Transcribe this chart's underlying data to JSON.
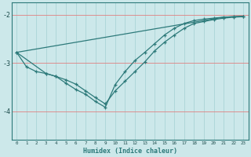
{
  "xlabel": "Humidex (Indice chaleur)",
  "bg_color": "#cce8ea",
  "line_color": "#2d7a7a",
  "vgrid_color": "#aad4d6",
  "hgrid_color": "#e08080",
  "xlim": [
    -0.5,
    23.5
  ],
  "ylim": [
    -4.6,
    -1.75
  ],
  "yticks": [
    -4,
    -3,
    -2
  ],
  "ytick_labels": [
    "-4",
    "-3",
    "-2"
  ],
  "xticks": [
    0,
    1,
    2,
    3,
    4,
    5,
    6,
    7,
    8,
    9,
    10,
    11,
    12,
    13,
    14,
    15,
    16,
    17,
    18,
    19,
    20,
    21,
    22,
    23
  ],
  "series": [
    {
      "x": [
        0,
        1,
        2,
        3,
        4,
        5,
        6,
        7,
        8,
        9,
        10,
        11,
        12,
        13,
        14,
        15,
        16,
        17,
        18,
        19,
        20,
        21,
        22,
        23
      ],
      "y": [
        -2.78,
        -3.08,
        -3.18,
        -3.22,
        -3.28,
        -3.35,
        -3.44,
        -3.58,
        -3.72,
        -3.85,
        -3.58,
        -3.38,
        -3.18,
        -2.98,
        -2.75,
        -2.57,
        -2.42,
        -2.28,
        -2.18,
        -2.14,
        -2.1,
        -2.07,
        -2.05,
        -2.04
      ],
      "marker": true
    },
    {
      "x": [
        0,
        3,
        4,
        5,
        6,
        7,
        8,
        9,
        10,
        11,
        12,
        13,
        14,
        15,
        16,
        17,
        18,
        19,
        20,
        21,
        22,
        23
      ],
      "y": [
        -2.78,
        -3.22,
        -3.28,
        -3.42,
        -3.55,
        -3.65,
        -3.8,
        -3.92,
        -3.45,
        -3.18,
        -2.95,
        -2.78,
        -2.6,
        -2.42,
        -2.28,
        -2.18,
        -2.12,
        -2.09,
        -2.07,
        -2.05,
        -2.04,
        -2.03
      ],
      "marker": true
    },
    {
      "x": [
        0,
        21,
        22,
        23
      ],
      "y": [
        -2.78,
        -2.05,
        -2.04,
        -2.03
      ],
      "marker": false
    }
  ]
}
